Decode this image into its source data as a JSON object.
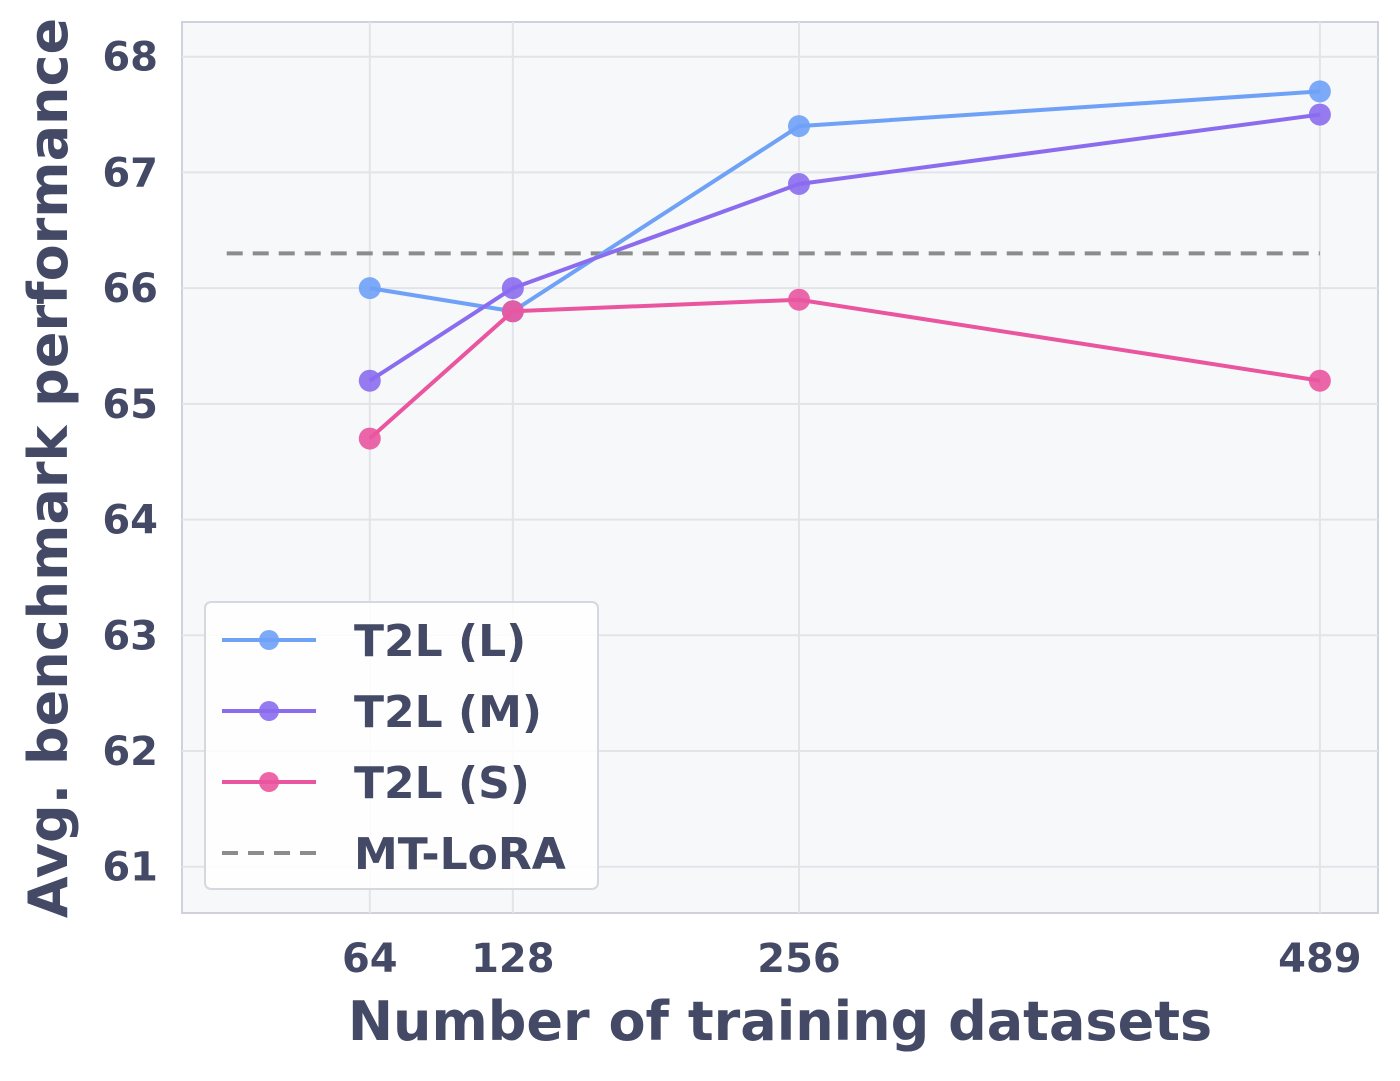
{
  "chart_data": {
    "type": "line",
    "xlabel": "Number of training datasets",
    "ylabel": "Avg. benchmark performance",
    "x_ticks": [
      64,
      128,
      256,
      489
    ],
    "y_ticks": [
      61,
      62,
      63,
      64,
      65,
      66,
      67,
      68
    ],
    "xlim": [
      -20,
      515
    ],
    "ylim": [
      60.6,
      68.3
    ],
    "grid": true,
    "legend_position": "lower-left",
    "x_positions": [
      64,
      128,
      256,
      489
    ],
    "series": [
      {
        "name": "T2L (L)",
        "color": "#6fa1f7",
        "values": [
          66.0,
          65.8,
          67.4,
          67.7
        ]
      },
      {
        "name": "T2L (M)",
        "color": "#8b6cee",
        "values": [
          65.2,
          66.0,
          66.9,
          67.5
        ]
      },
      {
        "name": "T2L (S)",
        "color": "#ea559f",
        "values": [
          64.7,
          65.8,
          65.9,
          65.2
        ]
      }
    ],
    "reference_line": {
      "name": "MT-LoRA",
      "value": 66.3,
      "x_range": [
        0,
        489
      ],
      "color": "#8c8c8c",
      "style": "dashed"
    }
  }
}
